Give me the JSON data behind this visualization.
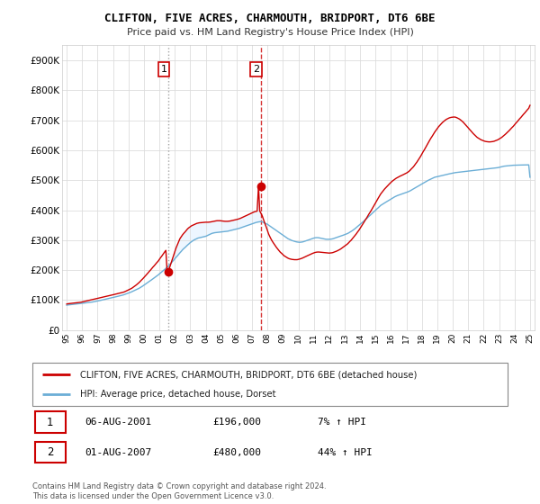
{
  "title": "CLIFTON, FIVE ACRES, CHARMOUTH, BRIDPORT, DT6 6BE",
  "subtitle": "Price paid vs. HM Land Registry's House Price Index (HPI)",
  "legend_line1": "CLIFTON, FIVE ACRES, CHARMOUTH, BRIDPORT, DT6 6BE (detached house)",
  "legend_line2": "HPI: Average price, detached house, Dorset",
  "sale1_date": "06-AUG-2001",
  "sale1_price": "£196,000",
  "sale1_hpi": "7% ↑ HPI",
  "sale2_date": "01-AUG-2007",
  "sale2_price": "£480,000",
  "sale2_hpi": "44% ↑ HPI",
  "footnote": "Contains HM Land Registry data © Crown copyright and database right 2024.\nThis data is licensed under the Open Government Licence v3.0.",
  "hpi_color": "#6baed6",
  "property_color": "#cc0000",
  "fill_color": "#ddeeff",
  "background_color": "#ffffff",
  "plot_bg_color": "#ffffff",
  "grid_color": "#dddddd",
  "ylim": [
    0,
    950000
  ],
  "yticks": [
    0,
    100000,
    200000,
    300000,
    400000,
    500000,
    600000,
    700000,
    800000,
    900000
  ],
  "ytick_labels": [
    "£0",
    "£100K",
    "£200K",
    "£300K",
    "£400K",
    "£500K",
    "£600K",
    "£700K",
    "£800K",
    "£900K"
  ],
  "sale1_year": 2001.58,
  "sale2_year": 2007.58,
  "sale1_price_val": 196000,
  "sale2_price_val": 480000,
  "hpi_years": [
    1995.0,
    1995.08,
    1995.17,
    1995.25,
    1995.33,
    1995.42,
    1995.5,
    1995.58,
    1995.67,
    1995.75,
    1995.83,
    1995.92,
    1996.0,
    1996.08,
    1996.17,
    1996.25,
    1996.33,
    1996.42,
    1996.5,
    1996.58,
    1996.67,
    1996.75,
    1996.83,
    1996.92,
    1997.0,
    1997.08,
    1997.17,
    1997.25,
    1997.33,
    1997.42,
    1997.5,
    1997.58,
    1997.67,
    1997.75,
    1997.83,
    1997.92,
    1998.0,
    1998.08,
    1998.17,
    1998.25,
    1998.33,
    1998.42,
    1998.5,
    1998.58,
    1998.67,
    1998.75,
    1998.83,
    1998.92,
    1999.0,
    1999.08,
    1999.17,
    1999.25,
    1999.33,
    1999.42,
    1999.5,
    1999.58,
    1999.67,
    1999.75,
    1999.83,
    1999.92,
    2000.0,
    2000.08,
    2000.17,
    2000.25,
    2000.33,
    2000.42,
    2000.5,
    2000.58,
    2000.67,
    2000.75,
    2000.83,
    2000.92,
    2001.0,
    2001.08,
    2001.17,
    2001.25,
    2001.33,
    2001.42,
    2001.5,
    2001.58,
    2001.67,
    2001.75,
    2001.83,
    2001.92,
    2002.0,
    2002.08,
    2002.17,
    2002.25,
    2002.33,
    2002.42,
    2002.5,
    2002.58,
    2002.67,
    2002.75,
    2002.83,
    2002.92,
    2003.0,
    2003.08,
    2003.17,
    2003.25,
    2003.33,
    2003.42,
    2003.5,
    2003.58,
    2003.67,
    2003.75,
    2003.83,
    2003.92,
    2004.0,
    2004.08,
    2004.17,
    2004.25,
    2004.33,
    2004.42,
    2004.5,
    2004.58,
    2004.67,
    2004.75,
    2004.83,
    2004.92,
    2005.0,
    2005.08,
    2005.17,
    2005.25,
    2005.33,
    2005.42,
    2005.5,
    2005.58,
    2005.67,
    2005.75,
    2005.83,
    2005.92,
    2006.0,
    2006.08,
    2006.17,
    2006.25,
    2006.33,
    2006.42,
    2006.5,
    2006.58,
    2006.67,
    2006.75,
    2006.83,
    2006.92,
    2007.0,
    2007.08,
    2007.17,
    2007.25,
    2007.33,
    2007.42,
    2007.5,
    2007.58,
    2007.67,
    2007.75,
    2007.83,
    2007.92,
    2008.0,
    2008.08,
    2008.17,
    2008.25,
    2008.33,
    2008.42,
    2008.5,
    2008.58,
    2008.67,
    2008.75,
    2008.83,
    2008.92,
    2009.0,
    2009.08,
    2009.17,
    2009.25,
    2009.33,
    2009.42,
    2009.5,
    2009.58,
    2009.67,
    2009.75,
    2009.83,
    2009.92,
    2010.0,
    2010.08,
    2010.17,
    2010.25,
    2010.33,
    2010.42,
    2010.5,
    2010.58,
    2010.67,
    2010.75,
    2010.83,
    2010.92,
    2011.0,
    2011.08,
    2011.17,
    2011.25,
    2011.33,
    2011.42,
    2011.5,
    2011.58,
    2011.67,
    2011.75,
    2011.83,
    2011.92,
    2012.0,
    2012.08,
    2012.17,
    2012.25,
    2012.33,
    2012.42,
    2012.5,
    2012.58,
    2012.67,
    2012.75,
    2012.83,
    2012.92,
    2013.0,
    2013.08,
    2013.17,
    2013.25,
    2013.33,
    2013.42,
    2013.5,
    2013.58,
    2013.67,
    2013.75,
    2013.83,
    2013.92,
    2014.0,
    2014.08,
    2014.17,
    2014.25,
    2014.33,
    2014.42,
    2014.5,
    2014.58,
    2014.67,
    2014.75,
    2014.83,
    2014.92,
    2015.0,
    2015.08,
    2015.17,
    2015.25,
    2015.33,
    2015.42,
    2015.5,
    2015.58,
    2015.67,
    2015.75,
    2015.83,
    2015.92,
    2016.0,
    2016.08,
    2016.17,
    2016.25,
    2016.33,
    2016.42,
    2016.5,
    2016.58,
    2016.67,
    2016.75,
    2016.83,
    2016.92,
    2017.0,
    2017.08,
    2017.17,
    2017.25,
    2017.33,
    2017.42,
    2017.5,
    2017.58,
    2017.67,
    2017.75,
    2017.83,
    2017.92,
    2018.0,
    2018.08,
    2018.17,
    2018.25,
    2018.33,
    2018.42,
    2018.5,
    2018.58,
    2018.67,
    2018.75,
    2018.83,
    2018.92,
    2019.0,
    2019.08,
    2019.17,
    2019.25,
    2019.33,
    2019.42,
    2019.5,
    2019.58,
    2019.67,
    2019.75,
    2019.83,
    2019.92,
    2020.0,
    2020.08,
    2020.17,
    2020.25,
    2020.33,
    2020.42,
    2020.5,
    2020.58,
    2020.67,
    2020.75,
    2020.83,
    2020.92,
    2021.0,
    2021.08,
    2021.17,
    2021.25,
    2021.33,
    2021.42,
    2021.5,
    2021.58,
    2021.67,
    2021.75,
    2021.83,
    2021.92,
    2022.0,
    2022.08,
    2022.17,
    2022.25,
    2022.33,
    2022.42,
    2022.5,
    2022.58,
    2022.67,
    2022.75,
    2022.83,
    2022.92,
    2023.0,
    2023.08,
    2023.17,
    2023.25,
    2023.33,
    2023.42,
    2023.5,
    2023.58,
    2023.67,
    2023.75,
    2023.83,
    2023.92,
    2024.0,
    2024.08,
    2024.17,
    2024.25,
    2024.33,
    2024.42,
    2024.5,
    2024.58,
    2024.67,
    2024.75,
    2024.83,
    2024.92,
    2025.0
  ],
  "hpi_values": [
    83000,
    84000,
    84500,
    85000,
    85500,
    86000,
    86500,
    87000,
    87500,
    88000,
    88500,
    89000,
    89500,
    90000,
    90500,
    91000,
    91500,
    92000,
    92500,
    93000,
    93800,
    94600,
    95400,
    96200,
    97000,
    98000,
    99000,
    100000,
    101000,
    102000,
    103000,
    104000,
    105000,
    106000,
    107000,
    108000,
    109000,
    110000,
    111000,
    112000,
    113000,
    114000,
    115000,
    116000,
    117500,
    119000,
    120500,
    122000,
    123500,
    125000,
    127000,
    129000,
    131000,
    133000,
    135000,
    137000,
    139000,
    141500,
    144000,
    147000,
    150000,
    153000,
    156000,
    159000,
    162000,
    165000,
    168000,
    171000,
    174000,
    177000,
    180500,
    184000,
    187500,
    191000,
    194500,
    198000,
    202000,
    206000,
    210000,
    214000,
    218500,
    223000,
    228000,
    233000,
    238000,
    243000,
    248000,
    253000,
    258000,
    263000,
    268000,
    272000,
    276000,
    280000,
    284000,
    288000,
    292000,
    295000,
    298000,
    301000,
    303000,
    305000,
    307000,
    308000,
    309000,
    310000,
    311000,
    312000,
    313000,
    315000,
    317000,
    319000,
    321000,
    323000,
    324000,
    325000,
    325500,
    326000,
    326500,
    327000,
    327500,
    328000,
    328500,
    329000,
    329500,
    330000,
    331000,
    332000,
    333000,
    334000,
    335000,
    336000,
    337000,
    338000,
    339500,
    341000,
    342500,
    344000,
    345500,
    347000,
    348500,
    350000,
    351500,
    353000,
    354500,
    356000,
    357500,
    359000,
    360000,
    361000,
    361500,
    362000,
    361000,
    359000,
    357000,
    355000,
    353000,
    350000,
    347000,
    344000,
    341000,
    338000,
    335000,
    332000,
    329000,
    326000,
    323000,
    320000,
    317000,
    314000,
    311000,
    308000,
    305000,
    303000,
    301000,
    299000,
    297500,
    296000,
    295000,
    294000,
    293500,
    293000,
    293500,
    294000,
    295000,
    296500,
    298000,
    299500,
    301000,
    302500,
    304000,
    305500,
    307000,
    308000,
    308500,
    308500,
    308000,
    307000,
    306000,
    305000,
    304000,
    303500,
    303000,
    303000,
    303000,
    303500,
    304000,
    305000,
    306500,
    308000,
    309500,
    311000,
    312500,
    314000,
    315500,
    317000,
    318500,
    320000,
    322000,
    324000,
    326500,
    329000,
    332000,
    335000,
    338500,
    342000,
    345500,
    349000,
    352500,
    356000,
    360000,
    364000,
    368000,
    372000,
    376000,
    380000,
    384000,
    388000,
    392000,
    396000,
    400000,
    404000,
    408000,
    412000,
    416000,
    419000,
    422000,
    424500,
    427000,
    429500,
    432000,
    434500,
    437000,
    440000,
    442500,
    445000,
    447000,
    449000,
    450500,
    452000,
    453500,
    455000,
    456500,
    458000,
    459500,
    461000,
    463000,
    465000,
    467500,
    470000,
    472500,
    475000,
    477500,
    480000,
    482500,
    485000,
    487500,
    490000,
    492500,
    495000,
    497500,
    500000,
    502000,
    504000,
    506000,
    508000,
    510000,
    511000,
    512000,
    513000,
    514000,
    515000,
    516000,
    517000,
    518000,
    519000,
    520000,
    521000,
    522000,
    523000,
    524000,
    525000,
    525500,
    526000,
    526500,
    527000,
    527500,
    528000,
    528500,
    529000,
    529500,
    530000,
    530500,
    531000,
    531500,
    532000,
    532500,
    533000,
    533500,
    534000,
    534500,
    535000,
    535500,
    536000,
    536500,
    537000,
    537500,
    538000,
    538500,
    539000,
    539500,
    540000,
    540500,
    541000,
    541500,
    542000,
    543000,
    544000,
    545000,
    546000,
    547000,
    547500,
    548000,
    548500,
    549000,
    549500,
    549800,
    550000,
    550200,
    550400,
    550500,
    550600,
    550700,
    550800,
    550900,
    551000,
    551100,
    551200,
    551300,
    551400,
    510000
  ],
  "prop_values": [
    87000,
    88000,
    88500,
    89000,
    89500,
    90000,
    90500,
    91000,
    91500,
    92000,
    92500,
    93000,
    94000,
    95000,
    96000,
    97000,
    98000,
    99000,
    100000,
    101000,
    102000,
    103000,
    104000,
    105000,
    106000,
    107000,
    108000,
    109000,
    110000,
    111000,
    112000,
    113000,
    114000,
    115000,
    116000,
    117000,
    118000,
    119000,
    120000,
    121000,
    122000,
    123000,
    124000,
    125000,
    126500,
    128000,
    130000,
    132000,
    134000,
    136000,
    138500,
    141000,
    144000,
    147000,
    150500,
    154000,
    158000,
    162000,
    166500,
    171000,
    175500,
    180000,
    185000,
    190000,
    195000,
    200000,
    205000,
    210000,
    215000,
    220000,
    225000,
    230000,
    236000,
    242000,
    248000,
    254000,
    260000,
    266000,
    196000,
    196000,
    210000,
    222000,
    235000,
    248000,
    261000,
    274000,
    285000,
    295000,
    305000,
    312000,
    318000,
    323000,
    328000,
    333000,
    338000,
    342000,
    345000,
    348000,
    350000,
    352000,
    354000,
    356000,
    357000,
    358000,
    358500,
    359000,
    359500,
    360000,
    360000,
    360000,
    360000,
    360500,
    361000,
    362000,
    363000,
    364000,
    364500,
    365000,
    365000,
    365000,
    364500,
    364000,
    363500,
    363000,
    363000,
    363000,
    363500,
    364000,
    365000,
    366000,
    367000,
    368000,
    369000,
    370000,
    371500,
    373000,
    375000,
    377000,
    379000,
    381000,
    383000,
    385000,
    387000,
    389000,
    391000,
    393000,
    395000,
    396000,
    397000,
    480000,
    397000,
    390000,
    380000,
    368000,
    356000,
    344000,
    332000,
    320000,
    310000,
    302000,
    295000,
    288000,
    282000,
    276000,
    270000,
    265000,
    260000,
    256000,
    252000,
    248000,
    245000,
    242000,
    240000,
    238000,
    237000,
    236000,
    235500,
    235000,
    235000,
    235000,
    236000,
    237000,
    238500,
    240000,
    242000,
    244000,
    246000,
    248000,
    250000,
    252000,
    254000,
    256000,
    257500,
    259000,
    260000,
    260500,
    260500,
    260000,
    259500,
    259000,
    258500,
    258000,
    257500,
    257000,
    257000,
    257500,
    258000,
    259000,
    260500,
    262000,
    264000,
    266000,
    268500,
    271000,
    274000,
    277000,
    280000,
    283000,
    287000,
    291000,
    295500,
    300000,
    305000,
    310000,
    315500,
    321000,
    327000,
    333000,
    339500,
    346000,
    353000,
    360000,
    367000,
    374000,
    381000,
    388000,
    395000,
    402000,
    409500,
    417000,
    424500,
    432000,
    440000,
    447000,
    454000,
    460000,
    465500,
    470500,
    475500,
    480000,
    484500,
    489000,
    493000,
    497000,
    500500,
    503500,
    506500,
    509000,
    511500,
    513500,
    515500,
    517500,
    519500,
    521500,
    524000,
    526500,
    530000,
    534000,
    538500,
    543000,
    548000,
    554000,
    560000,
    566500,
    573000,
    580000,
    587500,
    595000,
    602500,
    610000,
    618000,
    626000,
    633000,
    640000,
    647000,
    654000,
    660500,
    667000,
    673000,
    678500,
    683500,
    688000,
    692500,
    696500,
    700000,
    703000,
    705500,
    707500,
    709000,
    710000,
    710500,
    711000,
    710500,
    709000,
    707000,
    704500,
    701500,
    698000,
    694000,
    689500,
    685000,
    680000,
    675000,
    670000,
    665000,
    660000,
    655500,
    651000,
    647000,
    643000,
    640000,
    637500,
    635000,
    633000,
    631500,
    630000,
    629000,
    628500,
    628000,
    628000,
    628500,
    629000,
    630000,
    631500,
    633000,
    635000,
    637500,
    640000,
    643000,
    646500,
    650000,
    654000,
    658000,
    662000,
    666500,
    671000,
    675500,
    680000,
    685000,
    690000,
    695000,
    700000,
    705000,
    710000,
    715000,
    720000,
    725000,
    730000,
    735000,
    740000,
    750000
  ]
}
